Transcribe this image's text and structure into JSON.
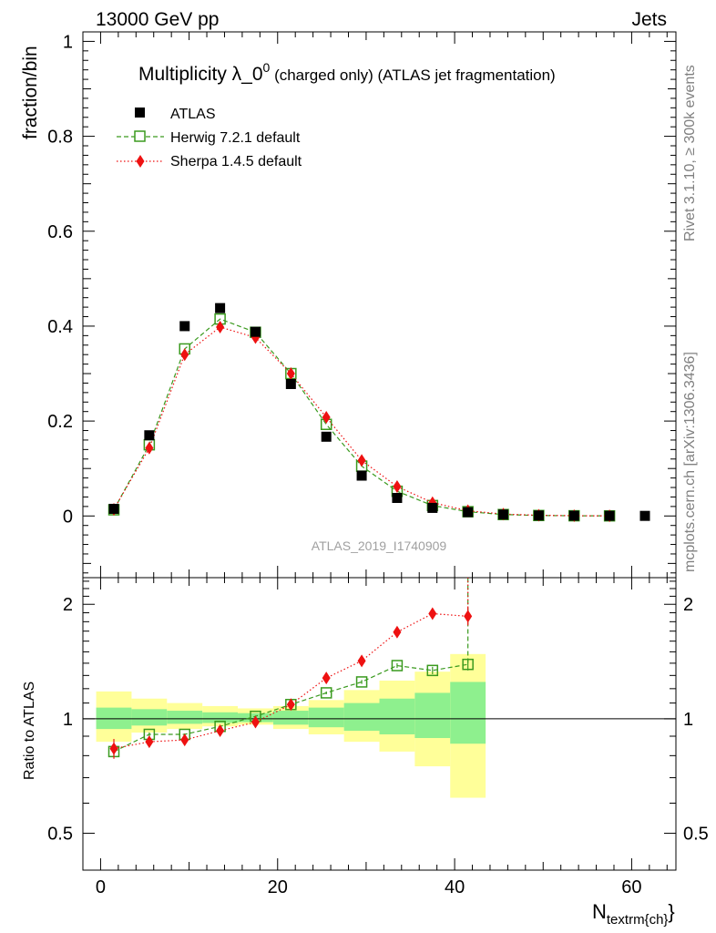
{
  "header": {
    "left": "13000 GeV pp",
    "right": "Jets"
  },
  "side_labels": {
    "top": "Rivet 3.1.10, ≥ 300k events",
    "bottom": "mcplots.cern.ch [arXiv:1306.3436]"
  },
  "watermark": "ATLAS_2019_I1740909",
  "colors": {
    "atlas": "#000000",
    "herwig": "#3a9a1e",
    "sherpa": "#ee1111",
    "band_inner": "#8ef08e",
    "band_outer": "#ffff99"
  },
  "chart_data": [
    {
      "type": "scatter",
      "panel": "main",
      "title_main": "Multiplicity λ_0",
      "title_sup": "0",
      "title_rest": " (charged only) (ATLAS jet fragmentation)",
      "ylabel": "fraction/bin",
      "xlim": [
        -2,
        65
      ],
      "ylim": [
        -0.13,
        1.02
      ],
      "yticks": [
        0,
        0.2,
        0.4,
        0.6,
        0.8,
        1
      ],
      "ytick_labels": [
        "0",
        "0.2",
        "0.4",
        "0.6",
        "0.8",
        "1"
      ],
      "legend_position": "top-left",
      "series": [
        {
          "name": "ATLAS",
          "marker": "filled-square",
          "line": "none",
          "x": [
            1.5,
            5.5,
            9.5,
            13.5,
            17.5,
            21.5,
            25.5,
            29.5,
            33.5,
            37.5,
            41.5,
            45.5,
            49.5,
            53.5,
            57.5,
            61.5
          ],
          "y": [
            0.015,
            0.17,
            0.4,
            0.438,
            0.388,
            0.278,
            0.167,
            0.085,
            0.038,
            0.017,
            0.008,
            0.003,
            0.001,
            0.0005,
            0.0003,
            0.0002
          ]
        },
        {
          "name": "Herwig 7.2.1 default",
          "marker": "open-square",
          "line": "dashed",
          "x": [
            1.5,
            5.5,
            9.5,
            13.5,
            17.5,
            21.5,
            25.5,
            29.5,
            33.5,
            37.5,
            41.5,
            45.5,
            49.5,
            53.5,
            57.5
          ],
          "y": [
            0.013,
            0.15,
            0.352,
            0.415,
            0.387,
            0.3,
            0.193,
            0.105,
            0.052,
            0.022,
            0.009,
            0.003,
            0.001,
            0.0004,
            0.0002
          ]
        },
        {
          "name": "Sherpa 1.4.5 default",
          "marker": "filled-diamond",
          "line": "dotted",
          "x": [
            1.5,
            5.5,
            9.5,
            13.5,
            17.5,
            21.5,
            25.5,
            29.5,
            33.5,
            37.5,
            41.5,
            45.5,
            49.5,
            53.5,
            57.5
          ],
          "y": [
            0.014,
            0.143,
            0.34,
            0.398,
            0.376,
            0.3,
            0.208,
            0.117,
            0.062,
            0.028,
            0.011,
            0.004,
            0.0015,
            0.0005,
            0.0002
          ]
        }
      ]
    },
    {
      "type": "scatter",
      "panel": "ratio",
      "ylabel": "Ratio to ATLAS",
      "xlabel_main": "N",
      "xlabel_sub": "textrm{ch}",
      "xlabel_close": "}",
      "scale": "log",
      "xlim": [
        -2,
        65
      ],
      "ylim": [
        0.4,
        2.35
      ],
      "xticks": [
        0,
        20,
        40,
        60
      ],
      "xtick_labels": [
        "0",
        "20",
        "40",
        "60"
      ],
      "yticks": [
        0.5,
        1,
        2
      ],
      "ytick_labels": [
        "0.5",
        "1",
        "2"
      ],
      "reference_line": 1,
      "bands": {
        "x_edges": [
          -0.5,
          3.5,
          7.5,
          11.5,
          15.5,
          19.5,
          23.5,
          27.5,
          31.5,
          35.5,
          39.5,
          43.5
        ],
        "inner_low": [
          0.94,
          0.96,
          0.97,
          0.975,
          0.98,
          0.965,
          0.95,
          0.93,
          0.91,
          0.89,
          0.86
        ],
        "inner_high": [
          1.07,
          1.06,
          1.05,
          1.04,
          1.035,
          1.05,
          1.07,
          1.1,
          1.13,
          1.17,
          1.25
        ],
        "outer_low": [
          0.87,
          0.92,
          0.94,
          0.955,
          0.965,
          0.94,
          0.91,
          0.87,
          0.82,
          0.75,
          0.62
        ],
        "outer_high": [
          1.18,
          1.13,
          1.1,
          1.08,
          1.065,
          1.08,
          1.12,
          1.19,
          1.26,
          1.33,
          1.48
        ]
      },
      "series": [
        {
          "name": "Herwig 7.2.1 default",
          "marker": "open-square",
          "line": "dashed",
          "x": [
            1.5,
            5.5,
            9.5,
            13.5,
            17.5,
            21.5,
            25.5,
            29.5,
            33.5,
            37.5,
            41.5
          ],
          "y": [
            0.82,
            0.91,
            0.91,
            0.955,
            1.015,
            1.09,
            1.17,
            1.25,
            1.38,
            1.34,
            1.39
          ],
          "err": [
            0.025,
            0.01,
            0.005,
            0.005,
            0.005,
            0.005,
            0.01,
            0.015,
            0.02,
            0.03,
            0.05
          ],
          "tail_to_top": true
        },
        {
          "name": "Sherpa 1.4.5 default",
          "marker": "filled-diamond",
          "line": "dotted",
          "x": [
            1.5,
            5.5,
            9.5,
            13.5,
            17.5,
            21.5,
            25.5,
            29.5,
            33.5,
            37.5,
            41.5
          ],
          "y": [
            0.835,
            0.87,
            0.88,
            0.93,
            0.98,
            1.09,
            1.28,
            1.42,
            1.69,
            1.89,
            1.86
          ],
          "err": [
            0.05,
            0.01,
            0.005,
            0.005,
            0.005,
            0.005,
            0.015,
            0.02,
            0.04,
            0.06,
            0.1
          ],
          "tail_to_top": true
        }
      ]
    }
  ]
}
